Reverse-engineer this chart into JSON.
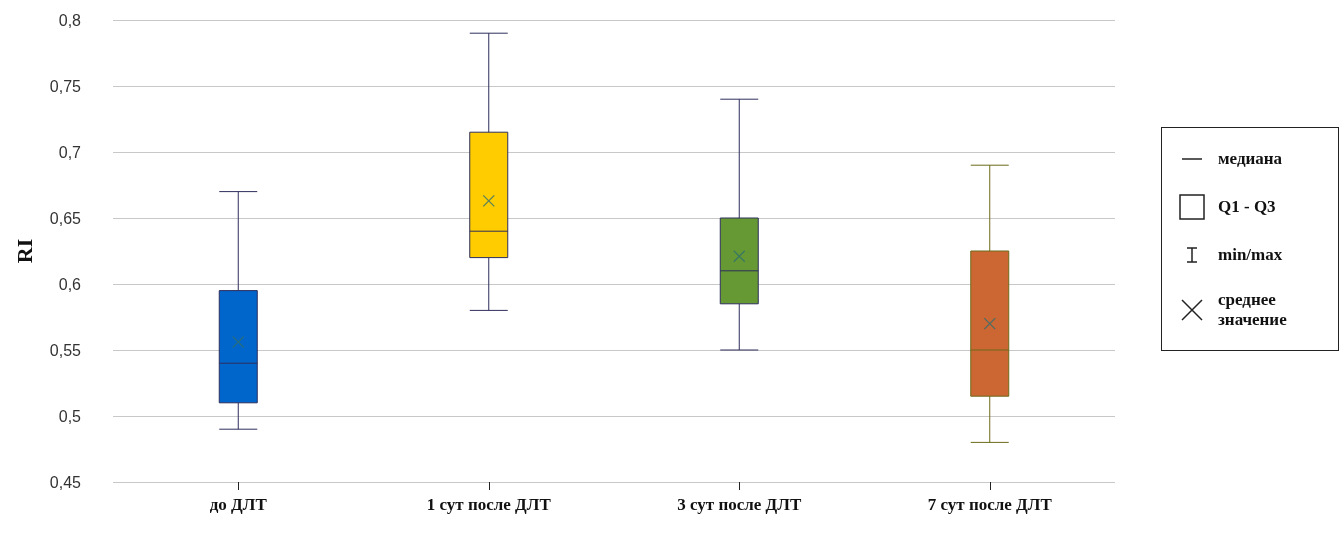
{
  "chart_data": {
    "type": "box",
    "ylabel": "RI",
    "categories": [
      "до ДЛТ",
      "1 сут после ДЛТ",
      "3 сут после ДЛТ",
      "7 сут после ДЛТ"
    ],
    "boxes": [
      {
        "low": 0.49,
        "q1": 0.51,
        "median": 0.54,
        "q3": 0.595,
        "high": 0.67,
        "mean": 0.556
      },
      {
        "low": 0.58,
        "q1": 0.62,
        "median": 0.64,
        "q3": 0.715,
        "high": 0.79,
        "mean": 0.663
      },
      {
        "low": 0.55,
        "q1": 0.585,
        "median": 0.61,
        "q3": 0.65,
        "high": 0.74,
        "mean": 0.621
      },
      {
        "low": 0.48,
        "q1": 0.515,
        "median": 0.55,
        "q3": 0.625,
        "high": 0.69,
        "mean": 0.57
      }
    ],
    "colors": [
      "#0066cc",
      "#ffcc00",
      "#669933",
      "#cc6633"
    ],
    "ylim": [
      0.45,
      0.8
    ],
    "yticks": [
      {
        "value": 0.45,
        "label": "0,45"
      },
      {
        "value": 0.5,
        "label": "0,5"
      },
      {
        "value": 0.55,
        "label": "0,55"
      },
      {
        "value": 0.6,
        "label": "0,6"
      },
      {
        "value": 0.65,
        "label": "0,65"
      },
      {
        "value": 0.7,
        "label": "0,7"
      },
      {
        "value": 0.75,
        "label": "0,75"
      },
      {
        "value": 0.8,
        "label": "0,8"
      }
    ],
    "grid": "y",
    "marker": "cross",
    "annotations": [
      "медиана",
      "Q1 - Q3",
      "min/max",
      "среднее значение"
    ]
  }
}
